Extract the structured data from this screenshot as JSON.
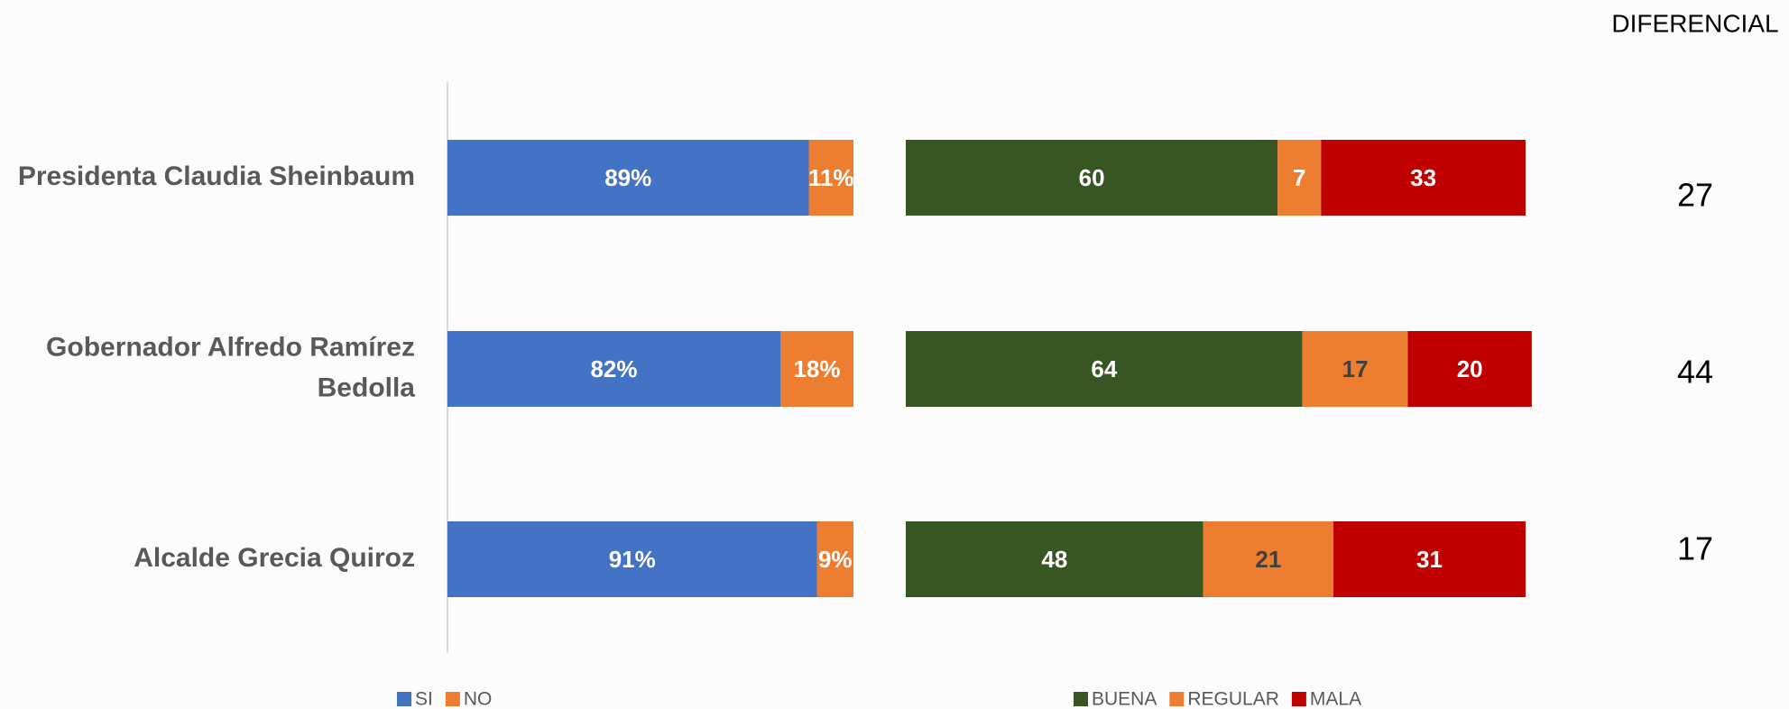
{
  "chart_data": [
    {
      "type": "stacked-bar",
      "categories": [
        "Presidenta Claudia Sheinbaum",
        "Gobernador Alfredo Ramírez Bedolla",
        "Alcalde Grecia Quiroz"
      ],
      "series": [
        {
          "name": "SI",
          "color": "#4472c4",
          "values": [
            89,
            82,
            91
          ],
          "value_labels": [
            "89%",
            "82%",
            "91%"
          ]
        },
        {
          "name": "NO",
          "color": "#ed7d31",
          "values": [
            11,
            18,
            9
          ],
          "value_labels": [
            "11%",
            "18%",
            "9%"
          ]
        }
      ],
      "xlim": [
        0,
        100
      ]
    },
    {
      "type": "stacked-bar",
      "series": [
        {
          "name": "BUENA",
          "color": "#375623",
          "values": [
            60,
            64,
            48
          ]
        },
        {
          "name": "REGULAR",
          "color": "#ed7d31",
          "values": [
            7,
            17,
            21
          ]
        },
        {
          "name": "MALA",
          "color": "#c00000",
          "values": [
            33,
            20,
            31
          ]
        }
      ],
      "xlim": [
        0,
        100
      ]
    }
  ],
  "diferencial": {
    "title": "DIFERENCIAL",
    "values": [
      27,
      44,
      17
    ]
  }
}
